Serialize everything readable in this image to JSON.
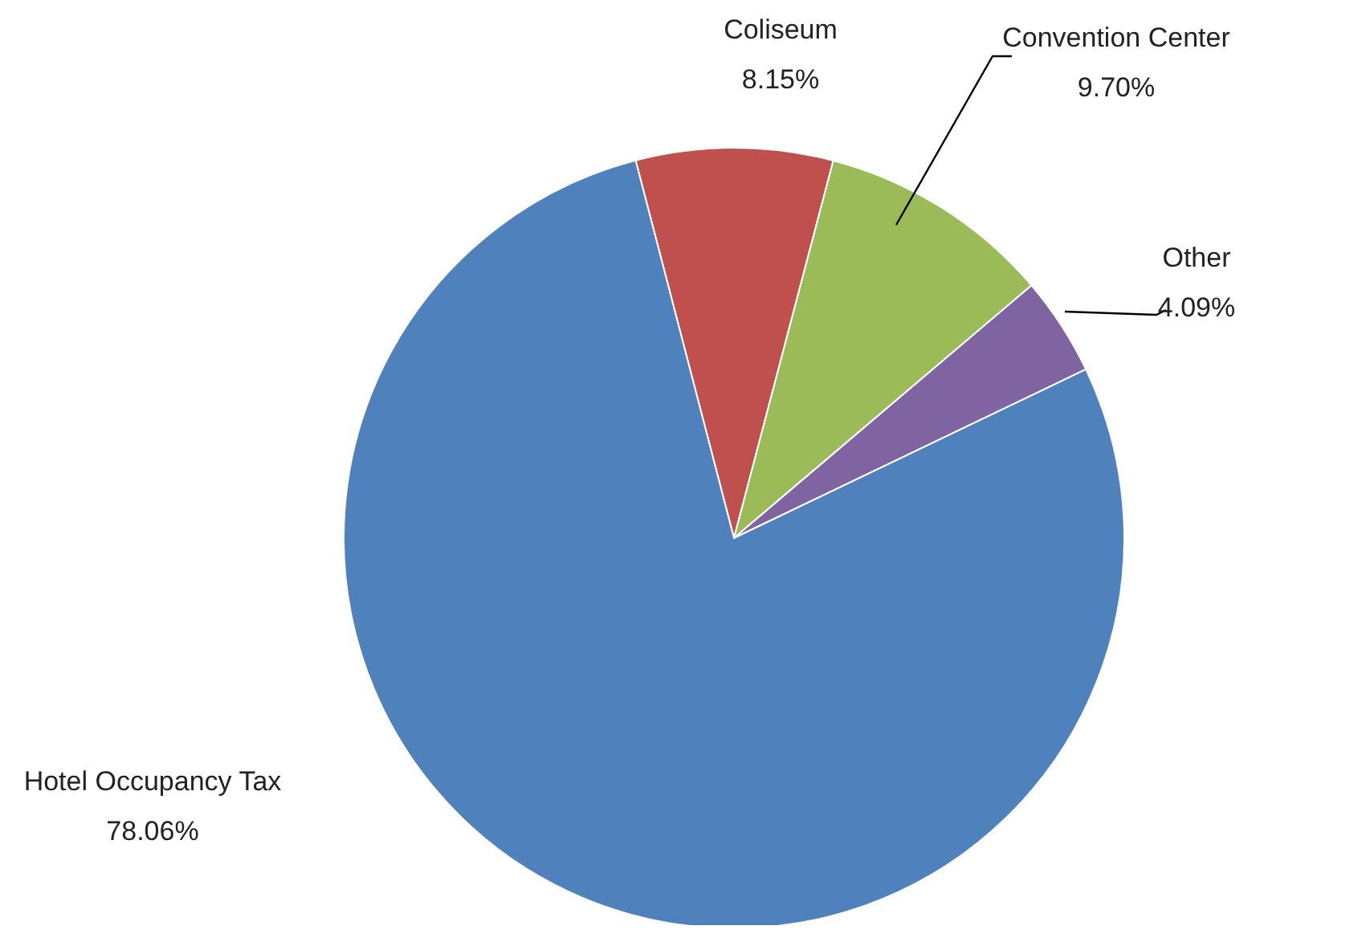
{
  "chart_data": {
    "type": "pie",
    "categories": [
      "Coliseum",
      "Convention Center",
      "Other",
      "Hotel Occupancy Tax"
    ],
    "values": [
      8.15,
      9.7,
      4.09,
      78.06
    ],
    "colors": [
      "#c0504d",
      "#9bbb59",
      "#8064a2",
      "#4f81bd"
    ],
    "value_labels": [
      "8.15%",
      "9.70%",
      "4.09%",
      "78.06%"
    ],
    "legend": false
  }
}
